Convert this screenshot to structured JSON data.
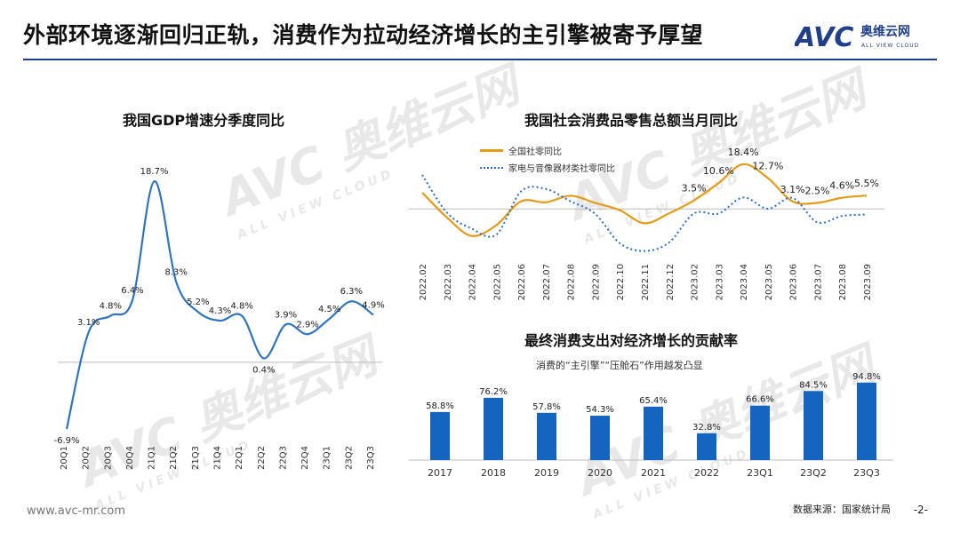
{
  "page": {
    "title": "外部环境逐渐回归正轨，消费作为拉动经济增长的主引擎被寄予厚望",
    "logo": {
      "letters": "AVC",
      "cn": "奥维云网",
      "en": "ALL VIEW CLOUD"
    },
    "watermark": {
      "letters": "AVC",
      "cn": "奥维云网",
      "en": "ALL VIEW CLOUD"
    },
    "footer_url": "www.avc-mr.com",
    "source": "数据来源：国家统计局",
    "page_number": "-2-",
    "colors": {
      "brand_blue": "#1f3f8a",
      "gdp_line": "#2f74c0",
      "retail_total": "#e69b16",
      "retail_appliance": "#2a6fc4",
      "bar": "#1565c0"
    }
  },
  "chart_data": [
    {
      "type": "line",
      "title": "我国GDP增速分季度同比",
      "categories": [
        "20Q1",
        "20Q2",
        "20Q3",
        "20Q4",
        "21Q1",
        "21Q2",
        "21Q3",
        "21Q4",
        "22Q1",
        "22Q2",
        "22Q3",
        "22Q4",
        "23Q1",
        "23Q2",
        "23Q3"
      ],
      "values": [
        -6.9,
        3.1,
        4.8,
        6.4,
        18.7,
        8.3,
        5.2,
        4.3,
        4.8,
        0.4,
        3.9,
        2.9,
        4.5,
        6.3,
        4.9
      ],
      "data_labels": [
        "-6.9%",
        "3.1%",
        "4.8%",
        "6.4%",
        "18.7%",
        "8.3%",
        "5.2%",
        "4.3%",
        "4.8%",
        "0.4%",
        "3.9%",
        "2.9%",
        "4.5%",
        "6.3%",
        "4.9%"
      ],
      "ylim": [
        -8,
        20
      ],
      "baseline": 0,
      "grid": false
    },
    {
      "type": "line",
      "title": "我国社会消费品零售总额当月同比",
      "categories": [
        "2022.02",
        "2022.03",
        "2022.04",
        "2022.05",
        "2022.06",
        "2022.07",
        "2022.08",
        "2022.09",
        "2022.10",
        "2022.11",
        "2022.12",
        "2023.02",
        "2023.03",
        "2023.04",
        "2023.05",
        "2023.06",
        "2023.07",
        "2023.08",
        "2023.09"
      ],
      "series": [
        {
          "name": "全国社零同比",
          "values": [
            6.7,
            -3.5,
            -11.1,
            -6.7,
            3.1,
            2.7,
            5.4,
            2.5,
            -0.5,
            -5.9,
            -1.8,
            3.5,
            10.6,
            18.4,
            12.7,
            3.1,
            2.5,
            4.6,
            5.5
          ],
          "data_labels": {
            "11": "3.5%",
            "12": "10.6%",
            "13": "18.4%",
            "14": "12.7%",
            "15": "3.1%",
            "16": "2.5%",
            "17": "4.6%",
            "18": "5.5%"
          }
        },
        {
          "name": "家电与音像器材类社零同比",
          "values": [
            14.0,
            -1.5,
            -8.1,
            -10.6,
            7.2,
            8.2,
            3.2,
            -2.0,
            -14.1,
            -17.3,
            -13.8,
            -1.9,
            -1.9,
            4.7,
            0.1,
            4.5,
            -5.5,
            -2.9,
            -2.3
          ]
        }
      ],
      "ylim": [
        -20,
        22
      ],
      "legend": "top-left",
      "grid": false
    },
    {
      "type": "bar",
      "title": "最终消费支出对经济增长的贡献率",
      "subtitle": "消费的“主引擎”“压舱石”作用越发凸显",
      "categories": [
        "2017",
        "2018",
        "2019",
        "2020",
        "2021",
        "2022",
        "23Q1",
        "23Q2",
        "23Q3"
      ],
      "values": [
        58.8,
        76.2,
        57.8,
        54.3,
        65.4,
        32.8,
        66.6,
        84.5,
        94.8
      ],
      "data_labels": [
        "58.8%",
        "76.2%",
        "57.8%",
        "54.3%",
        "65.4%",
        "32.8%",
        "66.6%",
        "84.5%",
        "94.8%"
      ],
      "ylim": [
        0,
        100
      ],
      "grid": false
    }
  ]
}
